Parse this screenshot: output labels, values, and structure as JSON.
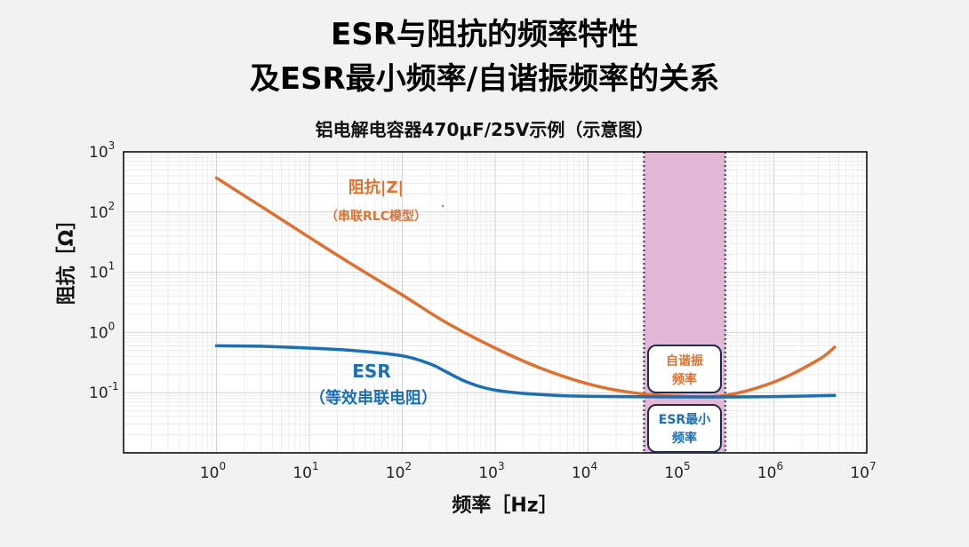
{
  "header": {
    "title_line1": "ESR与阻抗的频率特性",
    "title_line2": "及ESR最小频率/自谐振频率的关系",
    "subtitle": "铝电解电容器470μF/25V示例（示意图）"
  },
  "chart_data": {
    "type": "line",
    "xscale": "log",
    "yscale": "log",
    "xlim": [
      0.1,
      10000000
    ],
    "ylim": [
      0.01,
      1000
    ],
    "xlabel": "频率［Hz］",
    "ylabel": "阻抗［Ω］",
    "x_ticks": [
      {
        "base": "10",
        "exp": "0",
        "value": 1
      },
      {
        "base": "10",
        "exp": "1",
        "value": 10
      },
      {
        "base": "10",
        "exp": "2",
        "value": 100
      },
      {
        "base": "10",
        "exp": "3",
        "value": 1000
      },
      {
        "base": "10",
        "exp": "4",
        "value": 10000
      },
      {
        "base": "10",
        "exp": "5",
        "value": 100000
      },
      {
        "base": "10",
        "exp": "6",
        "value": 1000000
      },
      {
        "base": "10",
        "exp": "7",
        "value": 10000000
      }
    ],
    "y_ticks": [
      {
        "base": "10",
        "exp": "3",
        "value": 1000
      },
      {
        "base": "10",
        "exp": "2",
        "value": 100
      },
      {
        "base": "10",
        "exp": "1",
        "value": 10
      },
      {
        "base": "10",
        "exp": "0",
        "value": 1
      },
      {
        "base": "10",
        "exp": "-1",
        "value": 0.1
      }
    ],
    "grid": true,
    "series": [
      {
        "name_line1": "阻抗|Z|",
        "name_line2": "（串联RLC模型）",
        "color": "#e07030",
        "x": [
          1,
          3,
          10,
          30,
          100,
          300,
          1000,
          3000,
          10000,
          30000,
          100000,
          300000,
          1000000,
          3000000,
          4500000
        ],
        "y": [
          370,
          125,
          38,
          13,
          4.2,
          1.45,
          0.55,
          0.26,
          0.14,
          0.1,
          0.087,
          0.09,
          0.15,
          0.35,
          0.57
        ]
      },
      {
        "name_line1": "ESR",
        "name_line2": "（等效串联电阻）",
        "color": "#1a6fb5",
        "x": [
          1,
          3,
          10,
          30,
          100,
          200,
          300,
          500,
          1000,
          3000,
          10000,
          100000,
          300000,
          1000000,
          4500000
        ],
        "y": [
          0.6,
          0.59,
          0.55,
          0.5,
          0.41,
          0.3,
          0.22,
          0.15,
          0.11,
          0.093,
          0.087,
          0.085,
          0.085,
          0.086,
          0.09
        ]
      }
    ],
    "highlight_band": {
      "x_start": 40000,
      "x_end": 300000,
      "color": "#e3b7d6"
    },
    "annotations": [
      {
        "line1": "自谐振",
        "line2": "频率",
        "color": "#e07030"
      },
      {
        "line1": "ESR最小",
        "line2": "频率",
        "color": "#1a6fb5"
      }
    ]
  }
}
